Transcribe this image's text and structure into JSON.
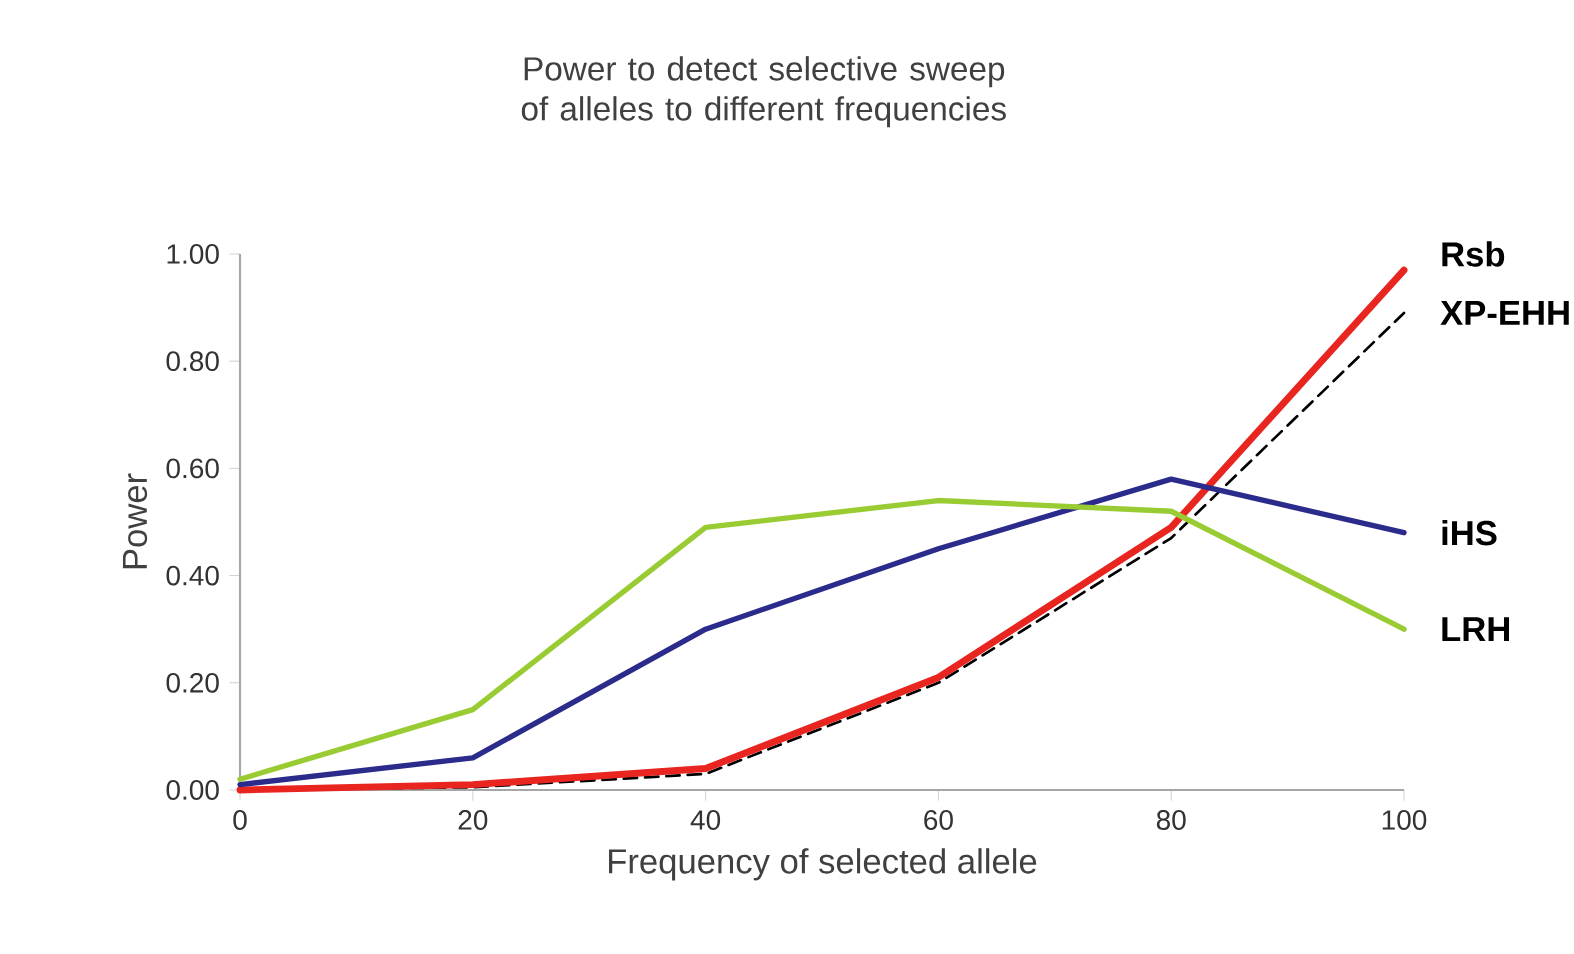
{
  "chart_data": {
    "type": "line",
    "title": "Power to detect selective sweep of alleles to different frequencies",
    "xlabel": "Frequency of selected allele",
    "ylabel": "Power",
    "x": [
      0,
      20,
      40,
      60,
      80,
      100
    ],
    "series": [
      {
        "name": "XP-EHH",
        "color": "#000000",
        "line_style": "dashed",
        "values": [
          0,
          0.005,
          0.03,
          0.2,
          0.47,
          0.89
        ]
      },
      {
        "name": "Rsb",
        "color": "#e8251f",
        "values": [
          0,
          0.01,
          0.04,
          0.21,
          0.49,
          0.97
        ]
      },
      {
        "name": "iHS",
        "color": "#2b2b8c",
        "values": [
          0.01,
          0.06,
          0.3,
          0.45,
          0.58,
          0.48
        ]
      },
      {
        "name": "LRH",
        "color": "#99cc33",
        "values": [
          0.02,
          0.15,
          0.49,
          0.54,
          0.52,
          0.3
        ]
      }
    ],
    "xlim": [
      0,
      100
    ],
    "ylim": [
      0,
      1
    ],
    "xticks": [
      0,
      20,
      40,
      60,
      80,
      100
    ],
    "yticks": [
      {
        "value": 0,
        "label": "0.00"
      },
      {
        "value": 0.2,
        "label": "0.20"
      },
      {
        "value": 0.4,
        "label": "0.40"
      },
      {
        "value": 0.6,
        "label": "0.60"
      },
      {
        "value": 0.8,
        "label": "0.80"
      },
      {
        "value": 1,
        "label": "1.00"
      }
    ],
    "grid": false,
    "legend": false,
    "marker": "none",
    "line_style": "solid"
  }
}
